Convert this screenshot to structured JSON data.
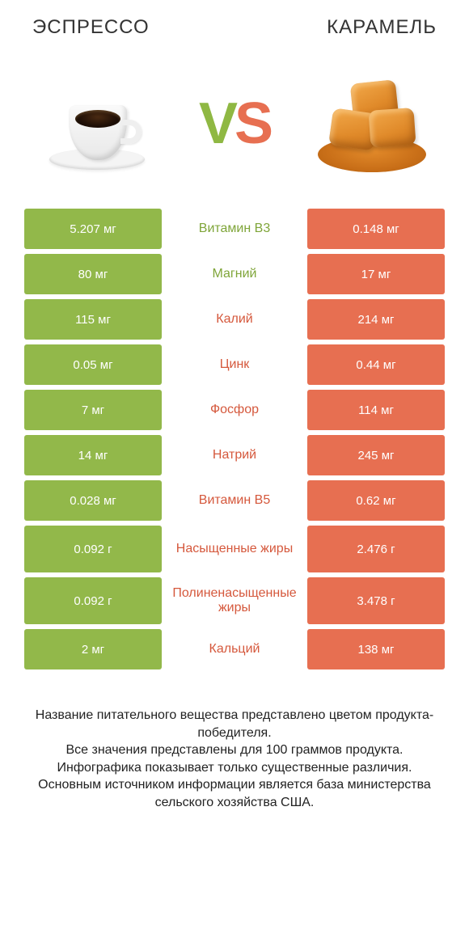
{
  "colors": {
    "green": "#92b84a",
    "orange": "#e76f51",
    "text_green": "#7fa539",
    "text_orange": "#d5583c",
    "white": "#ffffff"
  },
  "header": {
    "left": "ЭСПРЕССО",
    "right": "КАРАМЕЛЬ"
  },
  "vs": {
    "v": "V",
    "s": "S"
  },
  "comparison": {
    "type": "table",
    "left_cell_color": "#92b84a",
    "right_cell_color": "#e76f51",
    "label_fontsize": 16,
    "value_fontsize": 15,
    "rows": [
      {
        "left": "5.207 мг",
        "label": "Витамин B3",
        "right": "0.148 мг",
        "winner": "left"
      },
      {
        "left": "80 мг",
        "label": "Магний",
        "right": "17 мг",
        "winner": "left"
      },
      {
        "left": "115 мг",
        "label": "Калий",
        "right": "214 мг",
        "winner": "right"
      },
      {
        "left": "0.05 мг",
        "label": "Цинк",
        "right": "0.44 мг",
        "winner": "right"
      },
      {
        "left": "7 мг",
        "label": "Фосфор",
        "right": "114 мг",
        "winner": "right"
      },
      {
        "left": "14 мг",
        "label": "Натрий",
        "right": "245 мг",
        "winner": "right"
      },
      {
        "left": "0.028 мг",
        "label": "Витамин B5",
        "right": "0.62 мг",
        "winner": "right"
      },
      {
        "left": "0.092 г",
        "label": "Насыщенные жиры",
        "right": "2.476 г",
        "winner": "right",
        "tall": true
      },
      {
        "left": "0.092 г",
        "label": "Полиненасыщенные жиры",
        "right": "3.478 г",
        "winner": "right",
        "tall": true
      },
      {
        "left": "2 мг",
        "label": "Кальций",
        "right": "138 мг",
        "winner": "right"
      }
    ]
  },
  "footer": {
    "line1": "Название питательного вещества представлено цветом продукта-победителя.",
    "line2": "Все значения представлены для 100 граммов продукта.",
    "line3": "Инфографика показывает только существенные различия.",
    "line4": "Основным источником информации является база министерства сельского хозяйства США."
  }
}
